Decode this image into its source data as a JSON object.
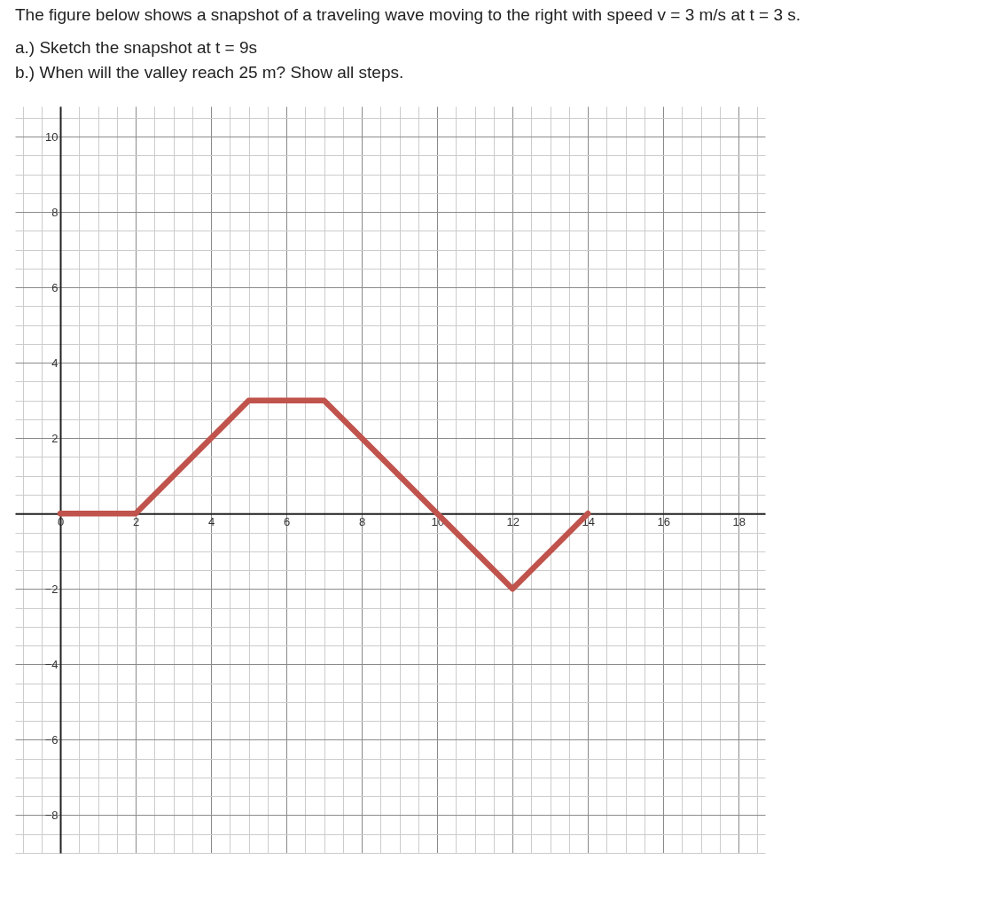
{
  "chart_data": {
    "type": "line",
    "title": "The figure below shows a snapshot of a traveling wave moving to the right with speed v = 3 m/s at t = 3 s.",
    "subtitle": "a.) Sketch the snapshot at t = 9s\nb.) When will the valley reach 25 m? Show all steps.",
    "x": [
      0,
      2,
      5,
      7,
      10,
      12,
      14
    ],
    "series": [
      {
        "color": "#c0534c",
        "values": [
          0,
          0,
          3,
          3,
          0,
          -2,
          0
        ]
      }
    ],
    "xlim": [
      -1.2,
      18.7
    ],
    "ylim": [
      -9,
      10.8
    ],
    "xticks": [
      0,
      2,
      4,
      6,
      8,
      10,
      12,
      14,
      16,
      18
    ],
    "yticks": [
      -8,
      -6,
      -4,
      -2,
      2,
      4,
      6,
      8,
      10
    ],
    "grid": true,
    "marker": "none",
    "line_style": "solid",
    "legend": false
  }
}
